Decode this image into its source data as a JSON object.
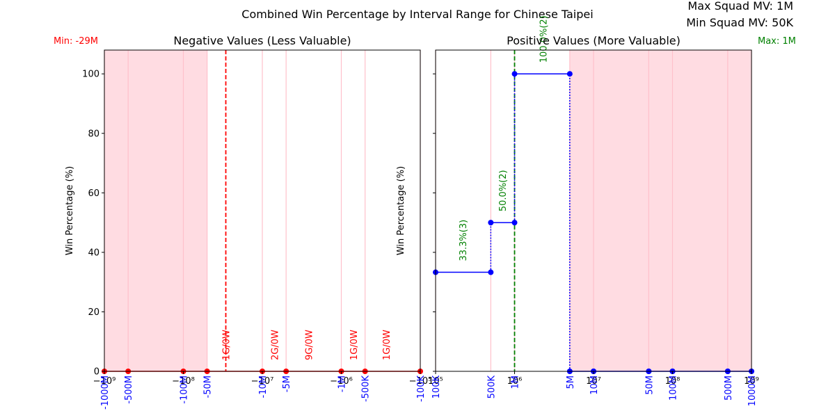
{
  "figure": {
    "suptitle": "Combined Win Percentage by Interval Range for Chinese Taipei",
    "info_lines": [
      "Max Squad MV: 1M",
      "Min Squad MV: 50K"
    ]
  },
  "colors": {
    "negative": "#ff0000",
    "positive": "#0000ff",
    "marker_line": "#008000",
    "shade": "#ffc0cb"
  },
  "chart_data": [
    {
      "type": "line",
      "title": "Negative Values (Less Valuable)",
      "xlabel": "",
      "ylabel": "Win Percentage (%)",
      "xscale": "symlog-negative",
      "xlim": [
        -1000000000,
        -100000
      ],
      "ylim": [
        0,
        108
      ],
      "grid": false,
      "x_ticks": [
        {
          "value": -1000000000,
          "label": "−10⁹"
        },
        {
          "value": -100000000,
          "label": "−10⁸"
        },
        {
          "value": -10000000,
          "label": "−10⁷"
        },
        {
          "value": -1000000,
          "label": "−10⁶"
        },
        {
          "value": -100000,
          "label": "−10⁵"
        }
      ],
      "y_ticks": [
        0,
        20,
        40,
        60,
        80,
        100
      ],
      "interval_labels": [
        {
          "value": -1000000000,
          "label": "-1000M"
        },
        {
          "value": -500000000,
          "label": "-500M"
        },
        {
          "value": -100000000,
          "label": "-100M"
        },
        {
          "value": -50000000,
          "label": "-50M"
        },
        {
          "value": -10000000,
          "label": "-10M"
        },
        {
          "value": -5000000,
          "label": "-5M"
        },
        {
          "value": -1000000,
          "label": "-1M"
        },
        {
          "value": -500000,
          "label": "-500K"
        },
        {
          "value": -100000,
          "label": "-100K"
        }
      ],
      "shaded_range": [
        -1000000000,
        -50000000
      ],
      "marker_line": {
        "value": -29000000,
        "label": "Min: -29M"
      },
      "series": [
        {
          "x": [
            -1000000000,
            -500000000,
            -100000000,
            -50000000,
            -10000000,
            -5000000,
            -1000000,
            -500000,
            -100000
          ],
          "y": [
            0,
            0,
            0,
            0,
            0,
            0,
            0,
            0,
            0
          ]
        }
      ],
      "annotations": [
        {
          "x": -29000000,
          "y": 0,
          "text": "1G/0W"
        },
        {
          "x": -7000000,
          "y": 0,
          "text": "2G/0W"
        },
        {
          "x": -2600000,
          "y": 0,
          "text": "9G/0W"
        },
        {
          "x": -700000,
          "y": 0,
          "text": "1G/0W"
        },
        {
          "x": -270000,
          "y": 0,
          "text": "1G/0W"
        }
      ]
    },
    {
      "type": "line",
      "title": "Positive Values (More Valuable)",
      "xlabel": "",
      "ylabel": "Win Percentage (%)",
      "xscale": "log",
      "xlim": [
        100000,
        1000000000
      ],
      "ylim": [
        0,
        108
      ],
      "grid": false,
      "x_ticks": [
        {
          "value": 100000,
          "label": "10⁵"
        },
        {
          "value": 1000000,
          "label": "10⁶"
        },
        {
          "value": 10000000,
          "label": "10⁷"
        },
        {
          "value": 100000000,
          "label": "10⁸"
        },
        {
          "value": 1000000000,
          "label": "10⁹"
        }
      ],
      "y_ticks": [
        0,
        20,
        40,
        60,
        80,
        100
      ],
      "interval_labels": [
        {
          "value": 100000,
          "label": "100K"
        },
        {
          "value": 500000,
          "label": "500K"
        },
        {
          "value": 1000000,
          "label": "1M"
        },
        {
          "value": 5000000,
          "label": "5M"
        },
        {
          "value": 10000000,
          "label": "10M"
        },
        {
          "value": 50000000,
          "label": "50M"
        },
        {
          "value": 100000000,
          "label": "100M"
        },
        {
          "value": 500000000,
          "label": "500M"
        },
        {
          "value": 1000000000,
          "label": "1000M"
        }
      ],
      "shaded_range": [
        5000000,
        1000000000
      ],
      "marker_line": {
        "value": 1000000,
        "label": "Max: 1M"
      },
      "segments": [
        {
          "x0": 100000,
          "x1": 500000,
          "y": 33.3
        },
        {
          "x0": 500000,
          "x1": 1000000,
          "y": 50.0
        },
        {
          "x0": 1000000,
          "x1": 5000000,
          "y": 100.0
        },
        {
          "x0": 5000000,
          "x1": 10000000,
          "y": 0
        },
        {
          "x0": 10000000,
          "x1": 50000000,
          "y": 0
        },
        {
          "x0": 50000000,
          "x1": 100000000,
          "y": 0
        },
        {
          "x0": 100000000,
          "x1": 500000000,
          "y": 0
        },
        {
          "x0": 500000000,
          "x1": 1000000000,
          "y": 0
        }
      ],
      "connectors": [
        {
          "x": 500000,
          "y0": 33.3,
          "y1": 50.0
        },
        {
          "x": 1000000,
          "y0": 50.0,
          "y1": 100.0
        },
        {
          "x": 5000000,
          "y0": 0,
          "y1": 100.0
        }
      ],
      "annotations": [
        {
          "x": 220000,
          "y": 33.3,
          "text": "33.3%(3)"
        },
        {
          "x": 700000,
          "y": 50.0,
          "text": "50.0%(2)"
        },
        {
          "x": 2300000,
          "y": 100.0,
          "text": "100.0%(2)"
        }
      ]
    }
  ]
}
